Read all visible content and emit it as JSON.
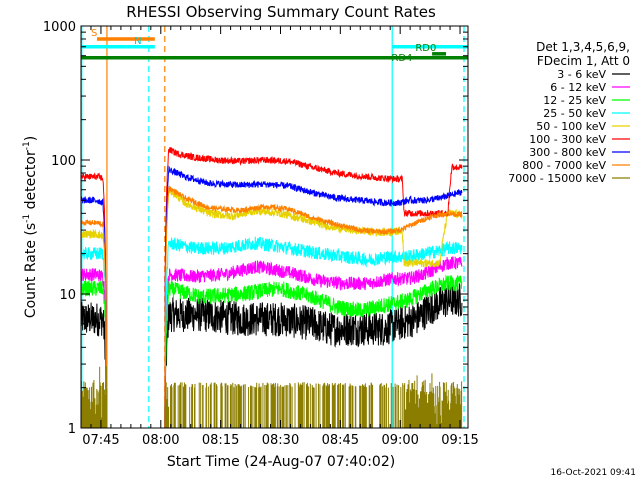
{
  "chart_data": {
    "type": "line",
    "title": "RHESSI Observing Summary Count Rates",
    "xlabel": "Start Time (24-Aug-07 07:40:02)",
    "ylabel_main": "Count Rate (s",
    "ylabel_sup1": "-1",
    "ylabel_mid": " detector",
    "ylabel_sup2": "-1",
    "ylabel_end": ")",
    "x_unit": "minutes after 07:40:02",
    "xlim": [
      0,
      97
    ],
    "ylim": [
      1,
      1000
    ],
    "yscale": "log",
    "x_ticks": [
      {
        "x": 5,
        "label": "07:45"
      },
      {
        "x": 20,
        "label": "08:00"
      },
      {
        "x": 35,
        "label": "08:15"
      },
      {
        "x": 50,
        "label": "08:30"
      },
      {
        "x": 65,
        "label": "08:45"
      },
      {
        "x": 80,
        "label": "09:00"
      },
      {
        "x": 95,
        "label": "09:15"
      }
    ],
    "y_ticks": [
      {
        "y": 1,
        "label": "1"
      },
      {
        "y": 10,
        "label": "10"
      },
      {
        "y": 100,
        "label": "100"
      },
      {
        "y": 1000,
        "label": "1000"
      }
    ],
    "legend": {
      "placement": "right",
      "header": [
        "Det 1,3,4,5,6,9,",
        "FDecim 1, Att 0"
      ],
      "entries": [
        {
          "label": "3 - 6 keV",
          "color": "#000000"
        },
        {
          "label": "6 - 12 keV",
          "color": "#ff00ff"
        },
        {
          "label": "12 - 25 keV",
          "color": "#00ff00"
        },
        {
          "label": "25 - 50 keV",
          "color": "#00ffff"
        },
        {
          "label": "50 - 100 keV",
          "color": "#e6d200"
        },
        {
          "label": "100 - 300 keV",
          "color": "#ff0000"
        },
        {
          "label": "300 - 800 keV",
          "color": "#0000ff"
        },
        {
          "label": "800 - 7000 keV",
          "color": "#ff8000"
        },
        {
          "label": "7000 - 15000 keV",
          "color": "#8b7d00"
        }
      ]
    },
    "gap": [
      6.5,
      21
    ],
    "series": [
      {
        "name": "3 - 6 keV",
        "color": "#000000",
        "noise": 0.13,
        "x": [
          0,
          4,
          5.5,
          6.1,
          6.3,
          21,
          22,
          30,
          40,
          50,
          58,
          62,
          70,
          76,
          80,
          84,
          88,
          92,
          95.5
        ],
        "y": [
          6.5,
          6.5,
          6.5,
          4,
          1,
          1,
          7,
          7,
          6.5,
          6.5,
          6,
          5.5,
          5.5,
          5.5,
          6,
          6.5,
          8,
          9,
          9
        ]
      },
      {
        "name": "6 - 12 keV",
        "color": "#ff00ff",
        "noise": 0.05,
        "x": [
          0,
          4,
          5.5,
          6.1,
          6.3,
          21,
          22,
          28,
          36,
          44,
          52,
          60,
          66,
          72,
          78,
          82,
          86,
          90,
          92,
          95.5
        ],
        "y": [
          14,
          14,
          13.5,
          9,
          1,
          1,
          14,
          13.5,
          14,
          16,
          14.5,
          12.5,
          12,
          12,
          13,
          13,
          14,
          16,
          17,
          17
        ]
      },
      {
        "name": "12 - 25 keV",
        "color": "#00ff00",
        "noise": 0.06,
        "x": [
          0,
          4,
          5.5,
          6.1,
          6.3,
          21,
          22,
          30,
          40,
          50,
          58,
          64,
          70,
          78,
          82,
          88,
          92,
          95.5
        ],
        "y": [
          11,
          11,
          11,
          7,
          1,
          1,
          11,
          9.5,
          10,
          11,
          9.5,
          8,
          7.5,
          8.5,
          9,
          11,
          12,
          12
        ]
      },
      {
        "name": "25 - 50 keV",
        "color": "#00ffff",
        "noise": 0.05,
        "x": [
          0,
          4,
          5.5,
          6.1,
          6.3,
          21,
          22,
          28,
          36,
          44,
          52,
          60,
          66,
          72,
          78,
          82,
          86,
          90,
          92,
          95.5
        ],
        "y": [
          20,
          20,
          20,
          12,
          1,
          1,
          24,
          22,
          22,
          24,
          22,
          20,
          19,
          18,
          19,
          19,
          20,
          21,
          22,
          22
        ]
      },
      {
        "name": "50 - 100 keV",
        "color": "#e6d200",
        "noise": 0.03,
        "x": [
          0,
          4,
          5.5,
          6.1,
          6.3,
          21,
          22,
          26,
          32,
          38,
          44,
          50,
          56,
          62,
          68,
          74,
          78,
          80.5,
          81,
          90,
          92,
          95.5
        ],
        "y": [
          28,
          28,
          27,
          15,
          1,
          1,
          60,
          48,
          40,
          38,
          42,
          40,
          36,
          32,
          30,
          29,
          29,
          30,
          17,
          17,
          40,
          39
        ]
      },
      {
        "name": "100 - 300 keV",
        "color": "#ff0000",
        "noise": 0.025,
        "x": [
          0,
          4,
          5.5,
          6,
          6.2,
          21,
          22,
          24,
          28,
          34,
          40,
          46,
          52,
          58,
          64,
          70,
          76,
          80,
          80.5,
          81,
          85,
          89,
          92,
          93,
          94,
          95.5
        ],
        "y": [
          75,
          75,
          73,
          30,
          1,
          1,
          120,
          112,
          105,
          100,
          98,
          100,
          98,
          88,
          80,
          76,
          73,
          72,
          72,
          40,
          40,
          40,
          40,
          90,
          88,
          88
        ]
      },
      {
        "name": "300 - 800 keV",
        "color": "#0000ff",
        "noise": 0.025,
        "x": [
          0,
          4,
          5.5,
          6.1,
          6.3,
          21,
          22,
          26,
          32,
          40,
          46,
          52,
          58,
          64,
          70,
          76,
          80,
          82,
          86,
          90,
          93,
          95.5
        ],
        "y": [
          50,
          50,
          48,
          20,
          1,
          1,
          85,
          75,
          67,
          65,
          66,
          64,
          57,
          52,
          50,
          48,
          48,
          50,
          50,
          52,
          55,
          58
        ]
      },
      {
        "name": "800 - 7000 keV",
        "color": "#ff8000",
        "noise": 0.02,
        "x": [
          0,
          4,
          5.5,
          6.1,
          6.3,
          21,
          22,
          26,
          32,
          40,
          46,
          52,
          58,
          64,
          70,
          76,
          80,
          84,
          88,
          92,
          95.5
        ],
        "y": [
          34,
          34,
          33,
          14,
          1,
          1,
          62,
          52,
          44,
          42,
          45,
          43,
          37,
          33,
          30,
          29,
          30,
          34,
          38,
          40,
          39
        ]
      },
      {
        "name": "7000 - 15000 keV",
        "color": "#8b7d00",
        "noise": 0,
        "x": [
          0,
          6.5,
          21,
          22,
          22.1,
          80,
          81,
          81.1,
          95.5
        ],
        "y": [
          2,
          2,
          1,
          1,
          2,
          2,
          1,
          2,
          2
        ]
      }
    ],
    "flag_bars": [
      {
        "label": "S",
        "color": "#ff8000",
        "x_start": 4.0,
        "x_end": 18.5,
        "y": 800,
        "label_x": 2.5
      },
      {
        "label": "",
        "color": "#00ffff",
        "x_start": 0,
        "x_end": 11.5,
        "y": 700
      },
      {
        "label": "N",
        "color": "#00ffff",
        "x_start": 11.5,
        "x_end": 18.5,
        "y": 700,
        "label_x": 13.3
      },
      {
        "label": "RD0",
        "color": "#00ffff",
        "x_start": 78,
        "x_end": 97,
        "y": 700
      },
      {
        "label": "RD0",
        "color": "#008000",
        "x_start": 88,
        "x_end": 91.5,
        "y": 620,
        "label_x": 83.8,
        "label_y": 620
      },
      {
        "label": "RD4",
        "color": "#008000",
        "x_start": 0,
        "x_end": 97,
        "y": 580,
        "label_x": 77.8,
        "label_y": 520
      }
    ],
    "vlines": [
      {
        "x": 0.2,
        "color": "#00ffff",
        "style": "solid"
      },
      {
        "x": 6.5,
        "color": "#ff8000",
        "style": "solid"
      },
      {
        "x": 17,
        "color": "#00ffff",
        "style": "dashed"
      },
      {
        "x": 21,
        "color": "#ff8000",
        "style": "dashed"
      },
      {
        "x": 78,
        "color": "#00ffff",
        "style": "solid"
      },
      {
        "x": 96,
        "color": "#00ffff",
        "style": "dashed"
      }
    ],
    "footer_date": "16-Oct-2021 09:41"
  }
}
